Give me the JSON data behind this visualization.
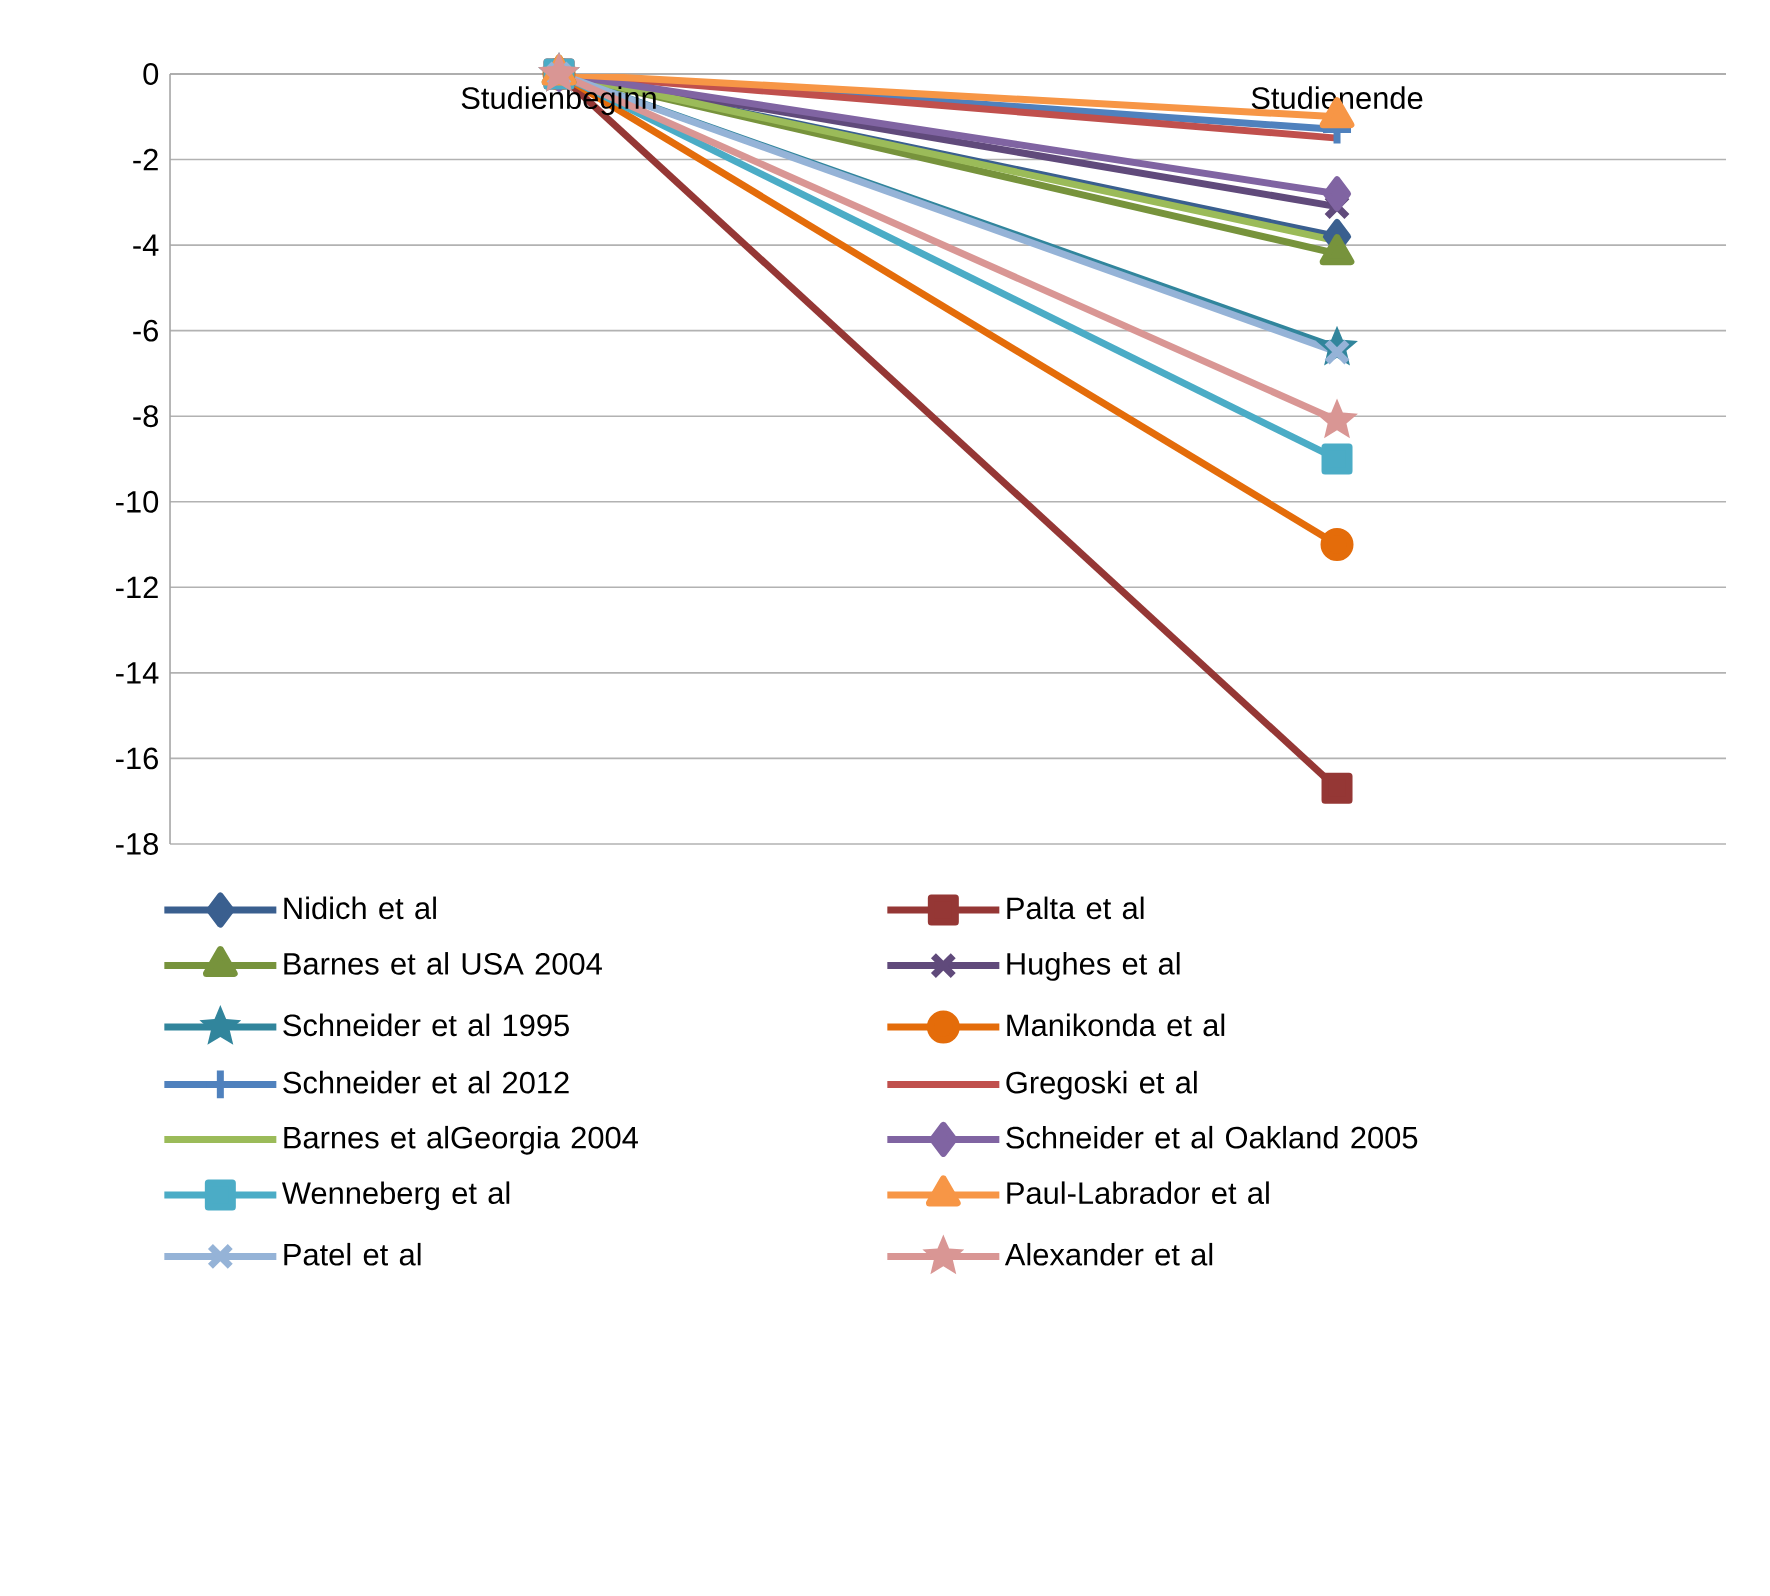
{
  "chart_data": {
    "type": "line",
    "categories": [
      "Studienbeginn",
      "Studienende"
    ],
    "ylim": [
      -18,
      0
    ],
    "yticks": [
      0,
      -2,
      -4,
      -6,
      -8,
      -10,
      -12,
      -14,
      -16,
      -18
    ],
    "grid": "y",
    "legend": "bottom",
    "series": [
      {
        "name": "Nidich et al",
        "color": "#3a5f8f",
        "marker": "diamond",
        "values": [
          0,
          -3.8
        ]
      },
      {
        "name": "Palta et al",
        "color": "#953735",
        "marker": "square",
        "values": [
          0,
          -16.7
        ]
      },
      {
        "name": "Barnes et al USA  2004",
        "color": "#77933c",
        "marker": "triangle",
        "values": [
          0,
          -4.2
        ]
      },
      {
        "name": "Hughes et al",
        "color": "#604a7b",
        "marker": "cross",
        "values": [
          0,
          -3.1
        ]
      },
      {
        "name": "Schneider et al 1995",
        "color": "#31859c",
        "marker": "star",
        "values": [
          0,
          -6.4
        ]
      },
      {
        "name": "Manikonda et al",
        "color": "#e46c0a",
        "marker": "circle",
        "values": [
          0,
          -11.0
        ]
      },
      {
        "name": "Schneider et al 2012",
        "color": "#4f81bd",
        "marker": "plus",
        "values": [
          0,
          -1.3
        ]
      },
      {
        "name": "Gregoski et al",
        "color": "#c0504d",
        "marker": "none",
        "values": [
          0,
          -1.5
        ]
      },
      {
        "name": "Barnes et alGeorgia  2004",
        "color": "#9bbb59",
        "marker": "none",
        "values": [
          0,
          -3.9
        ]
      },
      {
        "name": "Schneider et al Oakland 2005",
        "color": "#8064a2",
        "marker": "diamond",
        "values": [
          0,
          -2.8
        ]
      },
      {
        "name": "Wenneberg et al",
        "color": "#4bacc6",
        "marker": "square",
        "values": [
          0,
          -9.0
        ]
      },
      {
        "name": "Paul-Labrador et al",
        "color": "#f79646",
        "marker": "triangle",
        "values": [
          0,
          -1.0
        ]
      },
      {
        "name": "Patel et al",
        "color": "#95b3d7",
        "marker": "cross",
        "values": [
          0,
          -6.5
        ]
      },
      {
        "name": "Alexander et al",
        "color": "#d99694",
        "marker": "star",
        "values": [
          0,
          -8.1
        ]
      }
    ]
  }
}
